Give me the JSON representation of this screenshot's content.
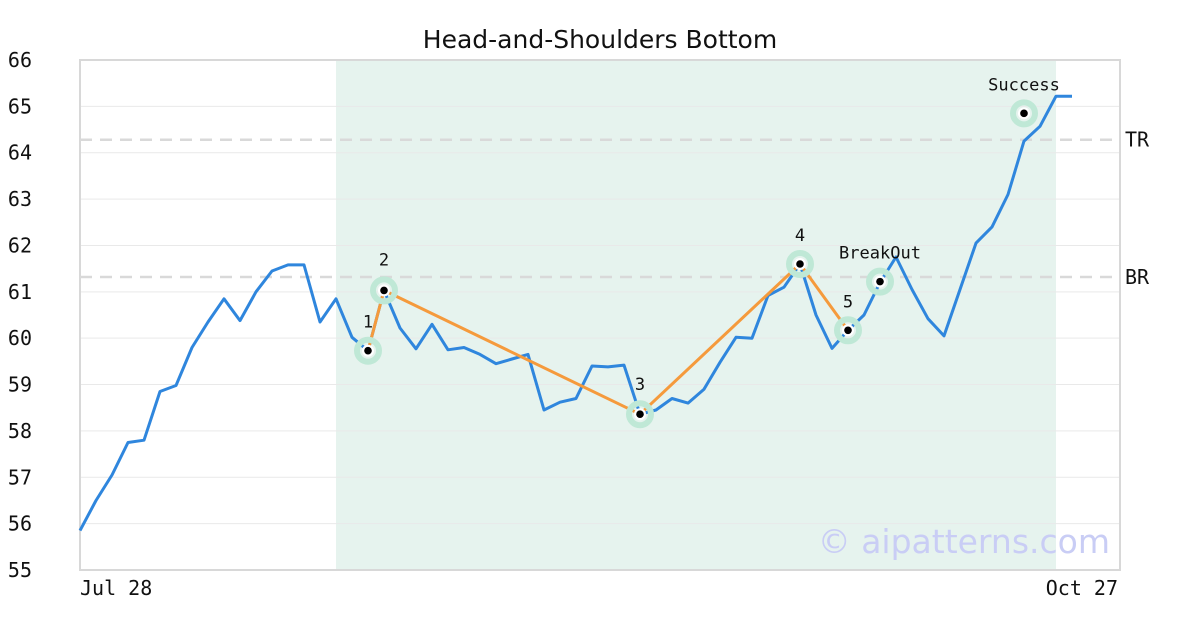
{
  "chart_data": {
    "type": "line",
    "title": "Head-and-Shoulders Bottom",
    "watermark": "© aipatterns.com",
    "x_start_label": "Jul 28",
    "x_end_label": "Oct 27",
    "y_ticks": [
      "55",
      "56",
      "57",
      "58",
      "59",
      "60",
      "61",
      "62",
      "63",
      "64",
      "65",
      "66"
    ],
    "ylim": [
      55,
      66
    ],
    "grid": true,
    "colors": {
      "price": "#2f86dd",
      "pattern": "#f59a3c",
      "highlight": "#e6f3ee",
      "marker_ring": "#bfe8d6",
      "ref_line": "#d9d9d9",
      "frame": "#d8d8d8"
    },
    "series": [
      {
        "values": [
          55.85,
          56.5,
          57.05,
          57.75,
          57.8,
          58.85,
          58.98,
          59.8,
          60.35,
          60.85,
          60.38,
          61.0,
          61.45,
          61.58,
          61.58,
          60.35,
          60.85,
          60.02,
          59.73,
          61.03,
          60.22,
          59.77,
          60.3,
          59.75,
          59.8,
          59.65,
          59.45,
          59.55,
          59.65,
          58.45,
          58.62,
          58.7,
          59.4,
          59.38,
          59.42,
          58.36,
          58.45,
          58.7,
          58.6,
          58.9,
          59.48,
          60.02,
          60.0,
          60.92,
          61.1,
          61.6,
          60.5,
          59.78,
          60.17,
          60.5,
          61.2,
          61.75,
          61.05,
          60.42,
          60.05,
          61.05,
          62.05,
          62.4,
          63.1,
          64.25,
          64.57,
          65.22,
          65.22
        ]
      }
    ],
    "highlight_range": [
      16,
      61
    ],
    "pattern_points": [
      {
        "label": "1",
        "x": 18,
        "y": 59.73
      },
      {
        "label": "2",
        "x": 19,
        "y": 61.03
      },
      {
        "label": "3",
        "x": 35,
        "y": 58.36
      },
      {
        "label": "4",
        "x": 45,
        "y": 61.6
      },
      {
        "label": "5",
        "x": 48,
        "y": 60.17
      }
    ],
    "events": [
      {
        "label": "BreakOut",
        "x": 50,
        "y": 61.22
      },
      {
        "label": "Success",
        "x": 59,
        "y": 64.85
      }
    ],
    "reference_lines": [
      {
        "label": "TR",
        "y": 64.28
      },
      {
        "label": "BR",
        "y": 61.32
      }
    ]
  }
}
